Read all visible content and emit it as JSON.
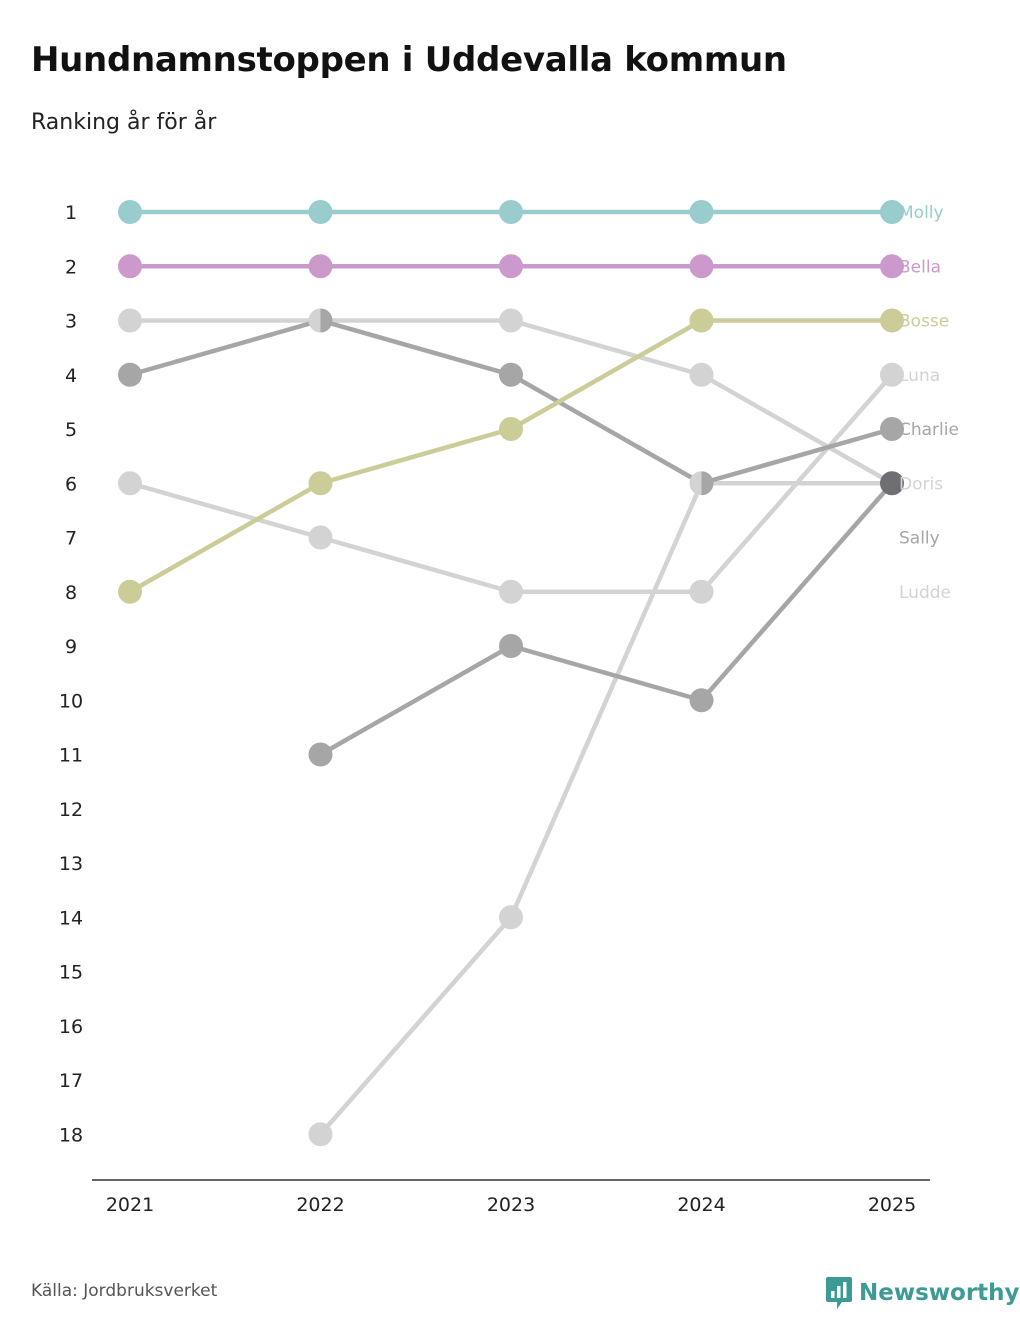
{
  "header": {
    "title": "Hundnamnstoppen i Uddevalla kommun",
    "subtitle": "Ranking år för år"
  },
  "footer": {
    "source": "Källa: Jordbruksverket",
    "brand": "Newsworthy",
    "brand_icon": "bar-chart-pin-icon",
    "brand_color": "#3d9a94"
  },
  "chart_data": {
    "type": "line",
    "title": "Hundnamnstoppen i Uddevalla kommun",
    "subtitle": "Ranking år för år",
    "xlabel": "",
    "ylabel": "",
    "x": [
      "2021",
      "2022",
      "2023",
      "2024",
      "2025"
    ],
    "y_ticks": [
      "1",
      "2",
      "3",
      "4",
      "5",
      "6",
      "7",
      "8",
      "9",
      "10",
      "11",
      "12",
      "13",
      "14",
      "15",
      "16",
      "17",
      "18"
    ],
    "ylim": [
      1,
      18
    ],
    "y_inverted": true,
    "grid": false,
    "legend": "direct labels at right end",
    "series": [
      {
        "name": "Luna",
        "color": "#d3d3d3",
        "values": [
          6,
          7,
          8,
          8,
          4
        ]
      },
      {
        "name": "Ludde",
        "color": "#d3d3d3",
        "values": [
          null,
          18,
          14,
          6,
          6
        ]
      },
      {
        "name": "Doris",
        "color": "#d3d3d3",
        "values": [
          3,
          3,
          3,
          4,
          6
        ]
      },
      {
        "name": "Sally",
        "color": "#a6a6a6",
        "values": [
          null,
          11,
          9,
          10,
          6
        ]
      },
      {
        "name": "Charlie",
        "color": "#a6a6a6",
        "values": [
          4,
          3,
          4,
          6,
          5
        ]
      },
      {
        "name": "Bosse",
        "color": "#cccc99",
        "values": [
          8,
          6,
          5,
          3,
          3
        ]
      },
      {
        "name": "Bella",
        "color": "#cc99cc",
        "values": [
          2,
          2,
          2,
          2,
          2
        ]
      },
      {
        "name": "Molly",
        "color": "#99cccc",
        "values": [
          1,
          1,
          1,
          1,
          1
        ]
      }
    ],
    "end_labels": [
      {
        "name": "Molly",
        "rank": 1,
        "color": "#99cccc"
      },
      {
        "name": "Bella",
        "rank": 2,
        "color": "#cc99cc"
      },
      {
        "name": "Bosse",
        "rank": 3,
        "color": "#cccc99"
      },
      {
        "name": "Luna",
        "rank": 4,
        "color": "#d3d3d3"
      },
      {
        "name": "Charlie",
        "rank": 5,
        "color": "#a6a6a6"
      },
      {
        "name": "Doris",
        "rank": 6,
        "color": "#d3d3d3"
      },
      {
        "name": "Sally",
        "rank": 7,
        "color": "#a6a6a6"
      },
      {
        "name": "Ludde",
        "rank": 8,
        "color": "#d3d3d3"
      }
    ],
    "tie_color": "#6e6e73"
  }
}
